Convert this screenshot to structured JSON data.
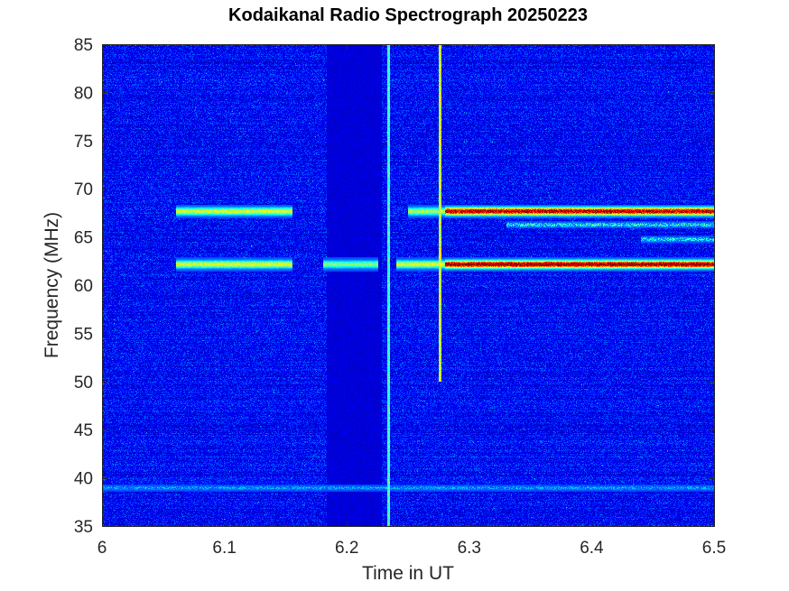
{
  "chart_data": {
    "type": "heatmap",
    "title": "Kodaikanal Radio Spectrograph  20250223",
    "xlabel": "Time in UT",
    "ylabel": "Frequency (MHz)",
    "xlim": [
      6,
      6.5
    ],
    "ylim": [
      35,
      85
    ],
    "xticks": [
      6,
      6.1,
      6.2,
      6.3,
      6.4,
      6.5
    ],
    "yticks": [
      35,
      40,
      45,
      50,
      55,
      60,
      65,
      70,
      75,
      80,
      85
    ],
    "xtick_labels": [
      "6",
      "6.1",
      "6.2",
      "6.3",
      "6.4",
      "6.5"
    ],
    "ytick_labels": [
      "35",
      "40",
      "45",
      "50",
      "55",
      "60",
      "65",
      "70",
      "75",
      "80",
      "85"
    ],
    "colormap": "jet",
    "grid": false,
    "features": [
      {
        "kind": "emission_band",
        "freq_mhz": 67.7,
        "time_start": 6.06,
        "time_end": 6.155,
        "intensity": 0.45
      },
      {
        "kind": "emission_band",
        "freq_mhz": 67.7,
        "time_start": 6.25,
        "time_end": 6.28,
        "intensity": 0.4
      },
      {
        "kind": "emission_band",
        "freq_mhz": 67.7,
        "time_start": 6.28,
        "time_end": 6.5,
        "intensity": 0.85
      },
      {
        "kind": "emission_band",
        "freq_mhz": 62.2,
        "time_start": 6.06,
        "time_end": 6.155,
        "intensity": 0.45
      },
      {
        "kind": "emission_band",
        "freq_mhz": 62.2,
        "time_start": 6.18,
        "time_end": 6.225,
        "intensity": 0.35
      },
      {
        "kind": "emission_band",
        "freq_mhz": 62.2,
        "time_start": 6.24,
        "time_end": 6.28,
        "intensity": 0.45
      },
      {
        "kind": "emission_band",
        "freq_mhz": 62.2,
        "time_start": 6.28,
        "time_end": 6.5,
        "intensity": 0.9
      },
      {
        "kind": "weak_band",
        "freq_mhz": 66.3,
        "time_start": 6.33,
        "time_end": 6.5,
        "intensity": 0.3
      },
      {
        "kind": "weak_band",
        "freq_mhz": 64.8,
        "time_start": 6.44,
        "time_end": 6.5,
        "intensity": 0.3
      },
      {
        "kind": "weak_band",
        "freq_mhz": 39.0,
        "time_start": 6.0,
        "time_end": 6.5,
        "intensity": 0.15
      },
      {
        "kind": "vertical_line",
        "time": 6.276,
        "freq_start": 50,
        "freq_end": 85,
        "intensity": 0.5
      },
      {
        "kind": "vertical_line",
        "time": 6.234,
        "freq_start": 35,
        "freq_end": 85,
        "intensity": 0.3
      },
      {
        "kind": "dark_gap",
        "time_start": 6.183,
        "time_end": 6.228,
        "freq_start": 35,
        "freq_end": 85
      }
    ]
  }
}
